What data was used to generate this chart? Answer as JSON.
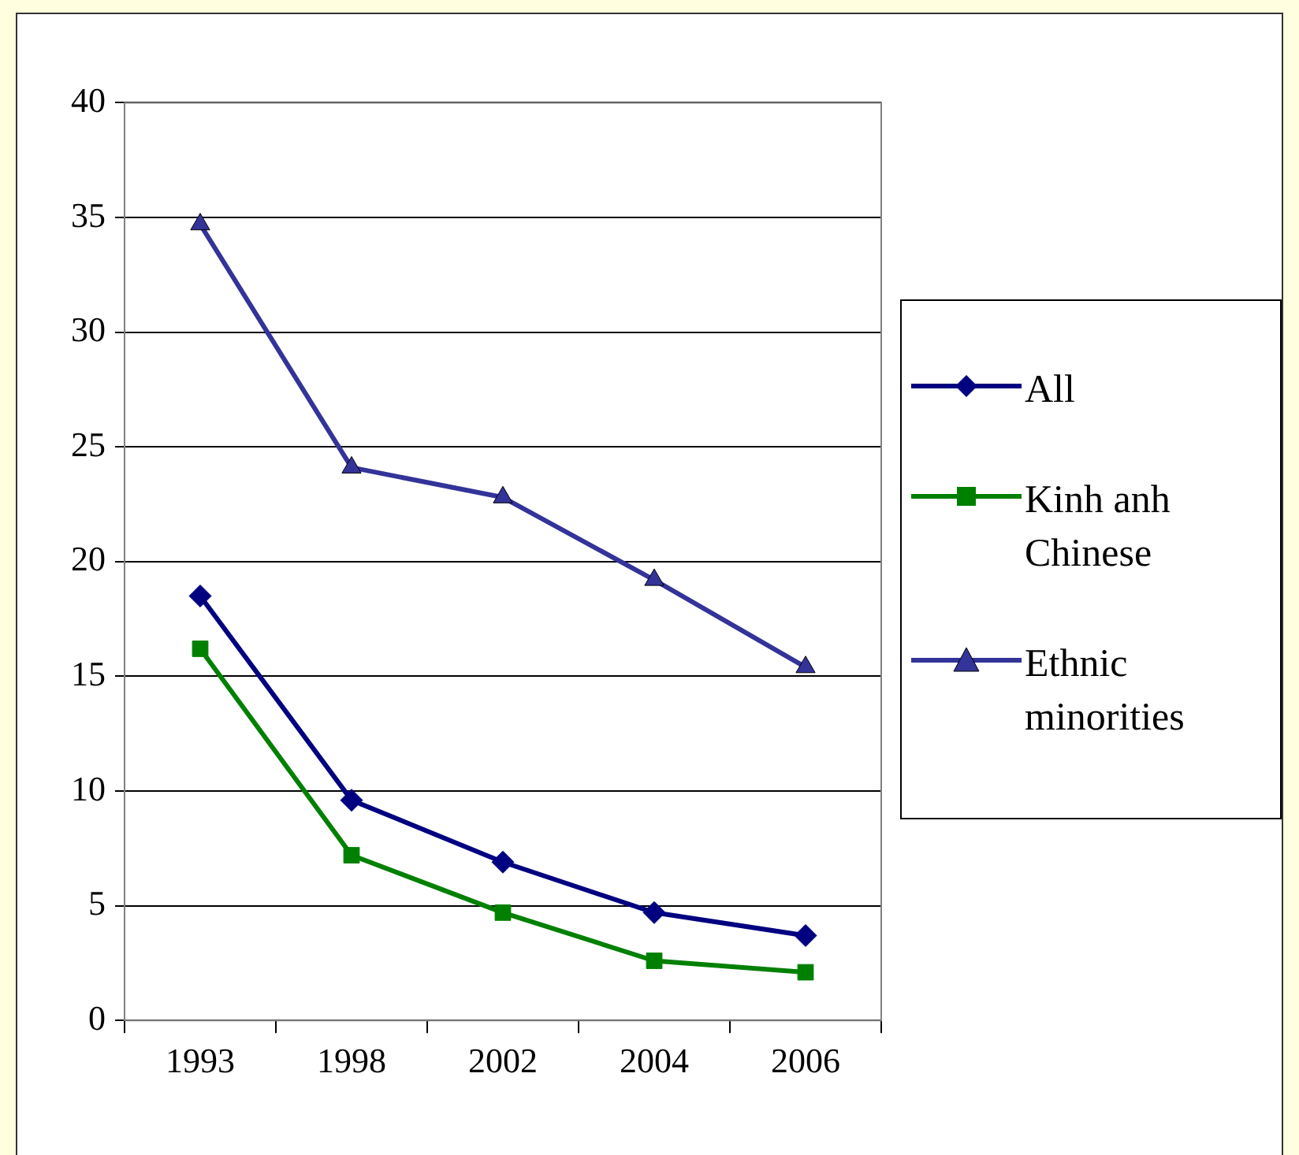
{
  "chart_data": {
    "type": "line",
    "categories": [
      "1993",
      "1998",
      "2002",
      "2004",
      "2006"
    ],
    "series": [
      {
        "name": "All",
        "color": "#000080",
        "marker": "diamond",
        "values": [
          18.5,
          9.6,
          6.9,
          4.7,
          3.7
        ]
      },
      {
        "name": "Kinh anh Chinese",
        "color": "#008000",
        "marker": "square",
        "values": [
          16.2,
          7.2,
          4.7,
          2.6,
          2.1
        ]
      },
      {
        "name": "Ethnic minorities",
        "color": "#333399",
        "marker": "triangle",
        "values": [
          34.7,
          24.1,
          22.8,
          19.2,
          15.4
        ]
      }
    ],
    "ylim": [
      0,
      40
    ],
    "yticks": [
      0,
      5,
      10,
      15,
      20,
      25,
      30,
      35,
      40
    ],
    "grid": "y",
    "legend": "right",
    "line_style": "solid"
  }
}
